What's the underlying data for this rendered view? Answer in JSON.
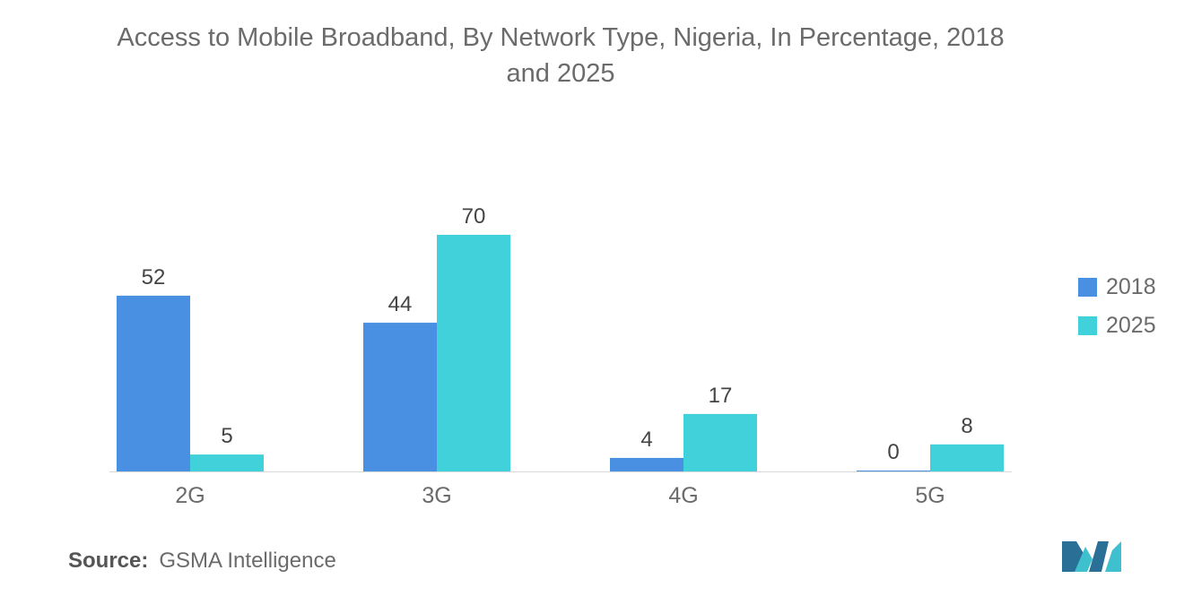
{
  "title": {
    "line1": "Access to Mobile Broadband, By Network Type, Nigeria, In Percentage, 2018",
    "line2": "and 2025"
  },
  "source": {
    "label": "Source:",
    "value": "GSMA Intelligence"
  },
  "colors": {
    "series_2018": "#4a90e2",
    "series_2025": "#40d1da",
    "text": "#6b6b6b",
    "axis": "#d9d9d9"
  },
  "chart_data": {
    "type": "bar",
    "title": "Access to Mobile Broadband, By Network Type, Nigeria, In Percentage, 2018 and 2025",
    "categories": [
      "2G",
      "3G",
      "4G",
      "5G"
    ],
    "series": [
      {
        "name": "2018",
        "values": [
          52,
          44,
          4,
          0
        ]
      },
      {
        "name": "2025",
        "values": [
          5,
          70,
          17,
          8
        ]
      }
    ],
    "xlabel": "",
    "ylabel": "",
    "ylim": [
      0,
      70
    ],
    "grid": false,
    "legend": "right"
  }
}
